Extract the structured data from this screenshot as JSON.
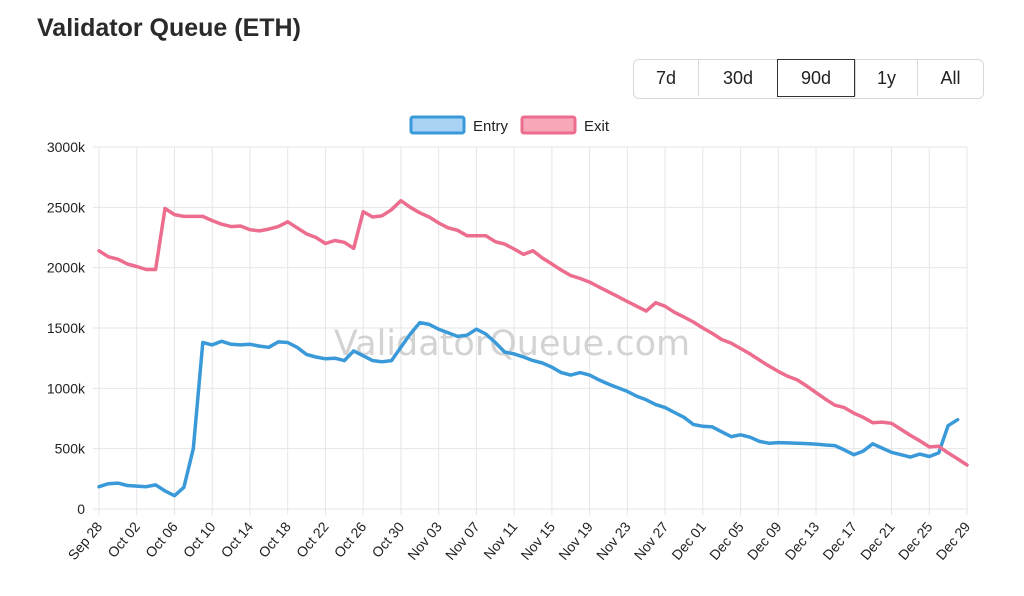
{
  "page": {
    "title": "Validator Queue (ETH)"
  },
  "range_selector": {
    "options": [
      "7d",
      "30d",
      "90d",
      "1y",
      "All"
    ],
    "selected": "90d"
  },
  "watermark": "ValidatorQueue.com",
  "colors": {
    "entry": "#3a9ad9",
    "exit": "#ec6d8d",
    "grid": "#e6e6e6"
  },
  "chart_data": {
    "type": "line",
    "title": "",
    "xlabel": "",
    "ylabel": "",
    "ylim": [
      0,
      3000
    ],
    "y_ticks": [
      0,
      500,
      1000,
      1500,
      2000,
      2500,
      3000
    ],
    "y_tick_labels": [
      "0",
      "500k",
      "1000k",
      "1500k",
      "2000k",
      "2500k",
      "3000k"
    ],
    "x_count": 93,
    "x_tick_indices": [
      0,
      4,
      8,
      12,
      16,
      20,
      24,
      28,
      32,
      36,
      40,
      44,
      48,
      52,
      56,
      60,
      64,
      68,
      72,
      76,
      80,
      84,
      88,
      92
    ],
    "x_tick_labels": [
      "Sep 28",
      "Oct 02",
      "Oct 06",
      "Oct 10",
      "Oct 14",
      "Oct 18",
      "Oct 22",
      "Oct 26",
      "Oct 30",
      "Nov 03",
      "Nov 07",
      "Nov 11",
      "Nov 15",
      "Nov 19",
      "Nov 23",
      "Nov 27",
      "Dec 01",
      "Dec 05",
      "Dec 09",
      "Dec 13",
      "Dec 17",
      "Dec 21",
      "Dec 25",
      "Dec 29"
    ],
    "legend_position": "top-center",
    "grid": true,
    "series": [
      {
        "name": "Entry",
        "color": "#3a9ad9",
        "fill": "#a9d3f5",
        "points": [
          [
            0,
            185
          ],
          [
            1,
            210
          ],
          [
            2,
            215
          ],
          [
            3,
            195
          ],
          [
            4,
            190
          ],
          [
            5,
            185
          ],
          [
            6,
            200
          ],
          [
            7,
            150
          ],
          [
            8,
            110
          ],
          [
            9,
            180
          ],
          [
            10,
            500
          ],
          [
            11,
            1380
          ],
          [
            12,
            1360
          ],
          [
            13,
            1390
          ],
          [
            14,
            1365
          ],
          [
            15,
            1360
          ],
          [
            16,
            1365
          ],
          [
            17,
            1350
          ],
          [
            18,
            1340
          ],
          [
            19,
            1385
          ],
          [
            20,
            1380
          ],
          [
            21,
            1340
          ],
          [
            22,
            1280
          ],
          [
            23,
            1260
          ],
          [
            24,
            1245
          ],
          [
            25,
            1250
          ],
          [
            26,
            1230
          ],
          [
            27,
            1310
          ],
          [
            28,
            1270
          ],
          [
            29,
            1230
          ],
          [
            30,
            1220
          ],
          [
            31,
            1230
          ],
          [
            32,
            1340
          ],
          [
            33,
            1450
          ],
          [
            34,
            1545
          ],
          [
            35,
            1530
          ],
          [
            36,
            1490
          ],
          [
            37,
            1460
          ],
          [
            38,
            1430
          ],
          [
            39,
            1440
          ],
          [
            40,
            1490
          ],
          [
            41,
            1450
          ],
          [
            42,
            1380
          ],
          [
            43,
            1300
          ],
          [
            44,
            1285
          ],
          [
            45,
            1260
          ],
          [
            46,
            1230
          ],
          [
            47,
            1210
          ],
          [
            48,
            1175
          ],
          [
            49,
            1130
          ],
          [
            50,
            1110
          ],
          [
            51,
            1130
          ],
          [
            52,
            1110
          ],
          [
            53,
            1070
          ],
          [
            54,
            1035
          ],
          [
            55,
            1005
          ],
          [
            56,
            975
          ],
          [
            57,
            935
          ],
          [
            58,
            905
          ],
          [
            59,
            865
          ],
          [
            60,
            840
          ],
          [
            61,
            800
          ],
          [
            62,
            760
          ],
          [
            63,
            700
          ],
          [
            64,
            685
          ],
          [
            65,
            680
          ],
          [
            66,
            640
          ],
          [
            67,
            600
          ],
          [
            68,
            615
          ],
          [
            69,
            595
          ],
          [
            70,
            560
          ],
          [
            71,
            545
          ],
          [
            72,
            550
          ],
          [
            73,
            548
          ],
          [
            74,
            545
          ],
          [
            75,
            542
          ],
          [
            76,
            538
          ],
          [
            77,
            530
          ],
          [
            78,
            525
          ],
          [
            79,
            490
          ],
          [
            80,
            450
          ],
          [
            81,
            480
          ],
          [
            82,
            540
          ],
          [
            83,
            505
          ],
          [
            84,
            470
          ],
          [
            85,
            450
          ],
          [
            86,
            430
          ],
          [
            87,
            455
          ],
          [
            88,
            435
          ],
          [
            89,
            465
          ],
          [
            90,
            690
          ],
          [
            91,
            740
          ]
        ]
      },
      {
        "name": "Exit",
        "color": "#ec6d8d",
        "fill": "#f6a8b9",
        "points": [
          [
            0,
            2140
          ],
          [
            1,
            2090
          ],
          [
            2,
            2070
          ],
          [
            3,
            2030
          ],
          [
            4,
            2010
          ],
          [
            5,
            1985
          ],
          [
            6,
            1985
          ],
          [
            7,
            2490
          ],
          [
            8,
            2440
          ],
          [
            9,
            2425
          ],
          [
            10,
            2425
          ],
          [
            11,
            2425
          ],
          [
            12,
            2390
          ],
          [
            13,
            2360
          ],
          [
            14,
            2340
          ],
          [
            15,
            2345
          ],
          [
            16,
            2315
          ],
          [
            17,
            2305
          ],
          [
            18,
            2320
          ],
          [
            19,
            2340
          ],
          [
            20,
            2380
          ],
          [
            21,
            2330
          ],
          [
            22,
            2280
          ],
          [
            23,
            2250
          ],
          [
            24,
            2200
          ],
          [
            25,
            2225
          ],
          [
            26,
            2210
          ],
          [
            27,
            2160
          ],
          [
            28,
            2465
          ],
          [
            29,
            2420
          ],
          [
            30,
            2430
          ],
          [
            31,
            2480
          ],
          [
            32,
            2555
          ],
          [
            33,
            2500
          ],
          [
            34,
            2455
          ],
          [
            35,
            2420
          ],
          [
            36,
            2370
          ],
          [
            37,
            2330
          ],
          [
            38,
            2310
          ],
          [
            39,
            2265
          ],
          [
            40,
            2265
          ],
          [
            41,
            2265
          ],
          [
            42,
            2215
          ],
          [
            43,
            2195
          ],
          [
            44,
            2155
          ],
          [
            45,
            2110
          ],
          [
            46,
            2140
          ],
          [
            47,
            2080
          ],
          [
            48,
            2030
          ],
          [
            49,
            1980
          ],
          [
            50,
            1935
          ],
          [
            51,
            1910
          ],
          [
            52,
            1880
          ],
          [
            53,
            1840
          ],
          [
            54,
            1800
          ],
          [
            55,
            1760
          ],
          [
            56,
            1720
          ],
          [
            57,
            1680
          ],
          [
            58,
            1640
          ],
          [
            59,
            1710
          ],
          [
            60,
            1680
          ],
          [
            61,
            1630
          ],
          [
            62,
            1590
          ],
          [
            63,
            1550
          ],
          [
            64,
            1500
          ],
          [
            65,
            1455
          ],
          [
            66,
            1405
          ],
          [
            67,
            1375
          ],
          [
            68,
            1330
          ],
          [
            69,
            1285
          ],
          [
            70,
            1235
          ],
          [
            71,
            1185
          ],
          [
            72,
            1140
          ],
          [
            73,
            1100
          ],
          [
            74,
            1070
          ],
          [
            75,
            1020
          ],
          [
            76,
            965
          ],
          [
            77,
            910
          ],
          [
            78,
            860
          ],
          [
            79,
            840
          ],
          [
            80,
            795
          ],
          [
            81,
            760
          ],
          [
            82,
            715
          ],
          [
            83,
            720
          ],
          [
            84,
            710
          ],
          [
            85,
            660
          ],
          [
            86,
            610
          ],
          [
            87,
            565
          ],
          [
            88,
            515
          ],
          [
            89,
            520
          ],
          [
            90,
            465
          ],
          [
            91,
            415
          ],
          [
            92,
            365
          ]
        ]
      }
    ]
  }
}
